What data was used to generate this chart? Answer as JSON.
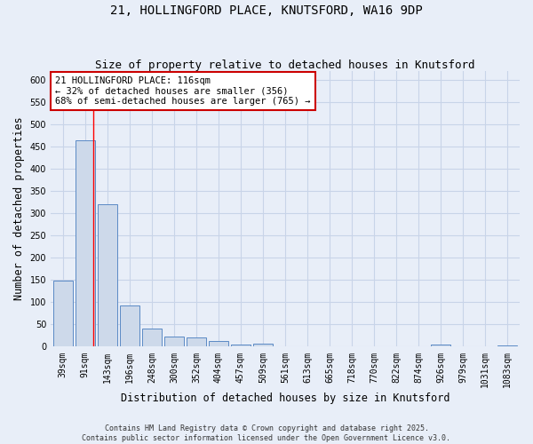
{
  "title_line1": "21, HOLLINGFORD PLACE, KNUTSFORD, WA16 9DP",
  "title_line2": "Size of property relative to detached houses in Knutsford",
  "xlabel": "Distribution of detached houses by size in Knutsford",
  "ylabel": "Number of detached properties",
  "categories": [
    "39sqm",
    "91sqm",
    "143sqm",
    "196sqm",
    "248sqm",
    "300sqm",
    "352sqm",
    "404sqm",
    "457sqm",
    "509sqm",
    "561sqm",
    "613sqm",
    "665sqm",
    "718sqm",
    "770sqm",
    "822sqm",
    "874sqm",
    "926sqm",
    "979sqm",
    "1031sqm",
    "1083sqm"
  ],
  "values": [
    148,
    464,
    319,
    93,
    41,
    22,
    20,
    12,
    5,
    7,
    1,
    1,
    1,
    1,
    0,
    0,
    0,
    4,
    0,
    1,
    3
  ],
  "bar_color": "#cdd9ea",
  "bar_edge_color": "#5b8ac5",
  "grid_color": "#c8d4e8",
  "background_color": "#e8eef8",
  "plot_background_color": "#e8eef8",
  "red_line_x": 1.35,
  "annotation_text": "21 HOLLINGFORD PLACE: 116sqm\n← 32% of detached houses are smaller (356)\n68% of semi-detached houses are larger (765) →",
  "annotation_box_color": "#ffffff",
  "annotation_box_edge": "#cc0000",
  "ylim": [
    0,
    620
  ],
  "yticks": [
    0,
    50,
    100,
    150,
    200,
    250,
    300,
    350,
    400,
    450,
    500,
    550,
    600
  ],
  "footer_line1": "Contains HM Land Registry data © Crown copyright and database right 2025.",
  "footer_line2": "Contains public sector information licensed under the Open Government Licence v3.0.",
  "title_fontsize": 10,
  "subtitle_fontsize": 9,
  "tick_fontsize": 7,
  "label_fontsize": 8.5,
  "annotation_fontsize": 7.5,
  "footer_fontsize": 6
}
